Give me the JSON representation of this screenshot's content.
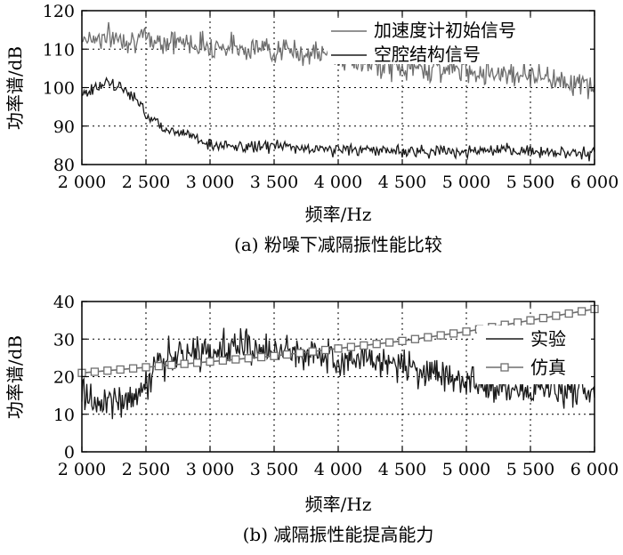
{
  "chart_data": [
    {
      "type": "line",
      "caption": "(a) 粉噪下减隔振性能比较",
      "xlabel": "频率/Hz",
      "ylabel": "功率谱/dB",
      "xlim": [
        2000,
        6000
      ],
      "ylim": [
        80,
        120
      ],
      "x_ticks": [
        2000,
        2500,
        3000,
        3500,
        4000,
        4500,
        5000,
        5500,
        6000
      ],
      "x_tick_labels": [
        "2 000",
        "2 500",
        "3 000",
        "3 500",
        "4 000",
        "4 500",
        "5 000",
        "5 500",
        "6 000"
      ],
      "y_ticks": [
        80,
        90,
        100,
        110,
        120
      ],
      "y_tick_labels": [
        "80",
        "90",
        "100",
        "110",
        "120"
      ],
      "grid": true,
      "legend_position": "top-right",
      "series": [
        {
          "name": "加速度计初始信号",
          "color": "#6e6e6e",
          "x": [
            2000,
            2250,
            2500,
            2750,
            3000,
            3250,
            3500,
            3750,
            4000,
            4250,
            4500,
            4750,
            5000,
            5250,
            5500,
            5750,
            6000
          ],
          "y": [
            113,
            113,
            112.5,
            112,
            111,
            110.5,
            110,
            109,
            108,
            106,
            105,
            105,
            104.5,
            104,
            103.5,
            102,
            100
          ]
        },
        {
          "name": "空腔结构信号",
          "color": "#1a1a1a",
          "x": [
            2000,
            2100,
            2200,
            2300,
            2400,
            2500,
            2600,
            2700,
            2800,
            2900,
            3000,
            3250,
            3500,
            3750,
            4000,
            4500,
            5000,
            5500,
            6000
          ],
          "y": [
            98,
            100,
            101,
            100,
            98,
            93,
            91,
            88,
            89,
            87,
            85,
            84.5,
            85,
            84,
            84,
            83.5,
            83.5,
            83.5,
            83
          ]
        }
      ]
    },
    {
      "type": "line",
      "caption": "(b) 减隔振性能提高能力",
      "xlabel": "频率/Hz",
      "ylabel": "功率谱/dB",
      "xlim": [
        2000,
        6000
      ],
      "ylim": [
        0,
        40
      ],
      "x_ticks": [
        2000,
        2500,
        3000,
        3500,
        4000,
        4500,
        5000,
        5500,
        6000
      ],
      "x_tick_labels": [
        "2 000",
        "2 500",
        "3 000",
        "3 500",
        "4 000",
        "4 500",
        "5 000",
        "5 500",
        "6 000"
      ],
      "y_ticks": [
        0,
        10,
        20,
        30,
        40
      ],
      "y_tick_labels": [
        "0",
        "10",
        "20",
        "30",
        "40"
      ],
      "grid": true,
      "legend_position": "right",
      "series": [
        {
          "name": "实验",
          "color": "#1a1a1a",
          "x": [
            2000,
            2250,
            2400,
            2500,
            2600,
            2750,
            3000,
            3250,
            3500,
            3750,
            4000,
            4250,
            4500,
            4750,
            5000,
            5250,
            5500,
            5750,
            6000
          ],
          "y": [
            14,
            13,
            15,
            18,
            24,
            25,
            27,
            28,
            26.5,
            26,
            25.5,
            24.5,
            23,
            21,
            19,
            17,
            16.5,
            16.5,
            16.5
          ]
        },
        {
          "name": "仿真",
          "color": "#6e6e6e",
          "marker": "square",
          "x": [
            2000,
            2500,
            3000,
            3500,
            4000,
            4500,
            5000,
            5500,
            6000
          ],
          "y": [
            21,
            22.5,
            24,
            25.5,
            27.5,
            29.5,
            32,
            35,
            38
          ]
        }
      ]
    }
  ]
}
